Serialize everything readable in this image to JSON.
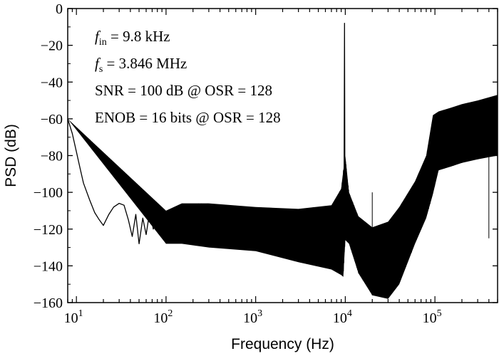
{
  "chart_data": {
    "type": "line",
    "title": "",
    "xlabel": "Frequency (Hz)",
    "ylabel": "PSD (dB)",
    "x_scale": "log",
    "xlim": [
      8,
      500000
    ],
    "ylim": [
      -160,
      0
    ],
    "x_ticks": [
      {
        "base": "10",
        "exp": "1",
        "value": 10
      },
      {
        "base": "10",
        "exp": "2",
        "value": 100
      },
      {
        "base": "10",
        "exp": "3",
        "value": 1000
      },
      {
        "base": "10",
        "exp": "4",
        "value": 10000
      },
      {
        "base": "10",
        "exp": "5",
        "value": 100000
      }
    ],
    "y_ticks": [
      {
        "label": "0",
        "value": 0
      },
      {
        "label": "−20",
        "value": -20
      },
      {
        "label": "−40",
        "value": -40
      },
      {
        "label": "−60",
        "value": -60
      },
      {
        "label": "−80",
        "value": -80
      },
      {
        "label": "−100",
        "value": -100
      },
      {
        "label": "−120",
        "value": -120
      },
      {
        "label": "−140",
        "value": -140
      },
      {
        "label": "−160",
        "value": -160
      }
    ],
    "grid": false,
    "legend": "none",
    "annotations": [
      {
        "sym": "f",
        "sub": "in",
        "text": " = 9.8 kHz"
      },
      {
        "sym": "f",
        "sub": "s",
        "text": " = 3.846 MHz"
      },
      {
        "sym": "",
        "sub": "",
        "text": "SNR = 100 dB @ OSR = 128"
      },
      {
        "sym": "",
        "sub": "",
        "text": "ENOB = 16 bits @ OSR = 128"
      }
    ],
    "series": [
      {
        "color": "#000000",
        "x": [
          8,
          9,
          10,
          11,
          12,
          14,
          16,
          18,
          20,
          23,
          26,
          30,
          34,
          38,
          42,
          46,
          50,
          55,
          60,
          66,
          72,
          80,
          90,
          100,
          120,
          150,
          200,
          300,
          500,
          1000,
          2000,
          3000,
          5000,
          7000,
          8500,
          9300,
          9700,
          9800,
          9900,
          10400,
          11500,
          14000,
          18000,
          25000,
          30000,
          40000,
          60000,
          80000,
          100000,
          150000,
          200000,
          300000,
          400000,
          500000
        ],
        "y": [
          -60,
          -68,
          -78,
          -87,
          -95,
          -104,
          -111,
          -115,
          -118,
          -112,
          -108,
          -106,
          -107,
          -115,
          -124,
          -112,
          -128,
          -114,
          -123,
          -110,
          -120,
          -112,
          -110,
          -118,
          -114,
          -112,
          -117,
          -116,
          -115,
          -117,
          -117,
          -117,
          -118,
          -115,
          -108,
          -98,
          -90,
          -8,
          -90,
          -102,
          -118,
          -123,
          -131,
          -134,
          -130,
          -124,
          -110,
          -95,
          -72,
          -67,
          -64,
          -61,
          -58,
          -56
        ],
        "band_x": [
          8,
          100,
          150,
          300,
          1000,
          3000,
          7000,
          9000,
          9500,
          10000,
          11000,
          14000,
          20000,
          30000,
          40000,
          60000,
          80000,
          95000,
          110000,
          150000,
          200000,
          300000,
          500000
        ],
        "band_upper": [
          -60,
          -110,
          -106,
          -106,
          -108,
          -109,
          -107,
          -98,
          -88,
          -80,
          -100,
          -113,
          -119,
          -116,
          -108,
          -94,
          -80,
          -58,
          -56,
          -54,
          -52,
          -50,
          -47
        ],
        "band_lower": [
          -60,
          -128,
          -128,
          -130,
          -132,
          -138,
          -142,
          -145,
          -146,
          -126,
          -128,
          -144,
          -156,
          -158,
          -150,
          -128,
          -114,
          -101,
          -88,
          -86,
          -84,
          -82,
          -80
        ],
        "spurs": [
          {
            "x": 20000,
            "y": -100
          },
          {
            "x": 110000,
            "y": -70
          },
          {
            "x": 160000,
            "y": -70
          },
          {
            "x": 200000,
            "y": -83
          },
          {
            "x": 300000,
            "y": -75
          },
          {
            "x": 400000,
            "y": -125
          }
        ]
      }
    ]
  }
}
